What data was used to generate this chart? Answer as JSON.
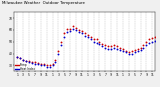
{
  "title_text": "Milwaukee Weather Outdoor Temperature vs Heat Index (24 Hours)",
  "title_fontsize": 3.2,
  "bg_color": "#f0f0f0",
  "plot_bg": "#ffffff",
  "x_ticks": [
    1,
    3,
    5,
    7,
    9,
    11,
    13,
    15,
    17,
    19,
    21,
    23,
    25,
    27,
    29,
    31,
    33,
    35,
    37,
    39,
    41,
    43,
    45,
    47
  ],
  "x_labels": [
    "1",
    "3",
    "5",
    "7",
    "9",
    "11",
    "1",
    "3",
    "5",
    "7",
    "9",
    "11",
    "1",
    "3",
    "5",
    "7",
    "9",
    "11",
    "1",
    "3",
    "5",
    "7",
    "9",
    "11"
  ],
  "ylim": [
    25,
    75
  ],
  "y_ticks": [
    30,
    40,
    50,
    60,
    70
  ],
  "y_labels": [
    "30",
    "40",
    "50",
    "60",
    "70"
  ],
  "legend_temp_color": "#cc0000",
  "legend_heat_color": "#0000cc",
  "temp_x": [
    1,
    2,
    3,
    4,
    5,
    6,
    7,
    8,
    9,
    10,
    11,
    12,
    13,
    14,
    15,
    16,
    17,
    18,
    19,
    20,
    21,
    22,
    23,
    24,
    25,
    26,
    27,
    28,
    29,
    30,
    31,
    32,
    33,
    34,
    35,
    36,
    37,
    38,
    39,
    40,
    41,
    42,
    43,
    44,
    45,
    46,
    47,
    48
  ],
  "temp_y": [
    37,
    36,
    35,
    34,
    34,
    33,
    33,
    32,
    31,
    31,
    30,
    30,
    31,
    35,
    42,
    50,
    57,
    61,
    61,
    63,
    62,
    60,
    59,
    57,
    56,
    54,
    52,
    52,
    50,
    48,
    47,
    46,
    46,
    47,
    46,
    45,
    44,
    42,
    41,
    42,
    43,
    44,
    45,
    47,
    50,
    52,
    53,
    54
  ],
  "heat_y": [
    37,
    36,
    35,
    34,
    33,
    32,
    31,
    31,
    30,
    30,
    29,
    29,
    30,
    33,
    40,
    47,
    54,
    58,
    59,
    61,
    60,
    58,
    57,
    55,
    54,
    52,
    50,
    49,
    48,
    46,
    45,
    44,
    44,
    45,
    44,
    43,
    42,
    41,
    40,
    40,
    41,
    42,
    43,
    45,
    47,
    49,
    50,
    51
  ],
  "bar_blue": "#0000ff",
  "bar_red": "#ff0000",
  "grid_color": "#bbbbbb",
  "dot_size": 1.8,
  "legend_label_temp": "Temp",
  "legend_label_heat": "Heat Index"
}
